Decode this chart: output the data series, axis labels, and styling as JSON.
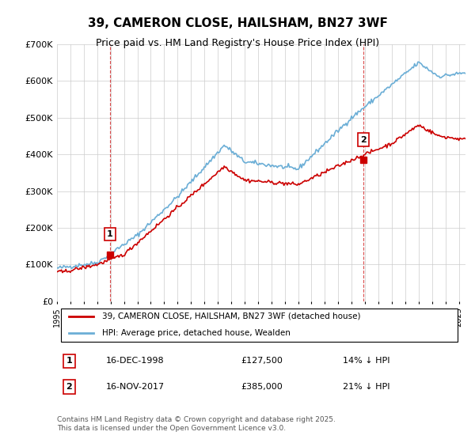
{
  "title": "39, CAMERON CLOSE, HAILSHAM, BN27 3WF",
  "subtitle": "Price paid vs. HM Land Registry's House Price Index (HPI)",
  "legend_line1": "39, CAMERON CLOSE, HAILSHAM, BN27 3WF (detached house)",
  "legend_line2": "HPI: Average price, detached house, Wealden",
  "annotation1_label": "1",
  "annotation1_date": "16-DEC-1998",
  "annotation1_price": "£127,500",
  "annotation1_hpi": "14% ↓ HPI",
  "annotation2_label": "2",
  "annotation2_date": "16-NOV-2017",
  "annotation2_price": "£385,000",
  "annotation2_hpi": "21% ↓ HPI",
  "footer": "Contains HM Land Registry data © Crown copyright and database right 2025.\nThis data is licensed under the Open Government Licence v3.0.",
  "hpi_color": "#6baed6",
  "price_color": "#cc0000",
  "sale1_color": "#cc0000",
  "sale2_color": "#cc0000",
  "ylim_min": 0,
  "ylim_max": 700000,
  "ytick_step": 100000,
  "start_year": 1995.0,
  "end_year": 2025.5,
  "background_color": "#ffffff",
  "plot_bg_color": "#ffffff",
  "grid_color": "#cccccc"
}
